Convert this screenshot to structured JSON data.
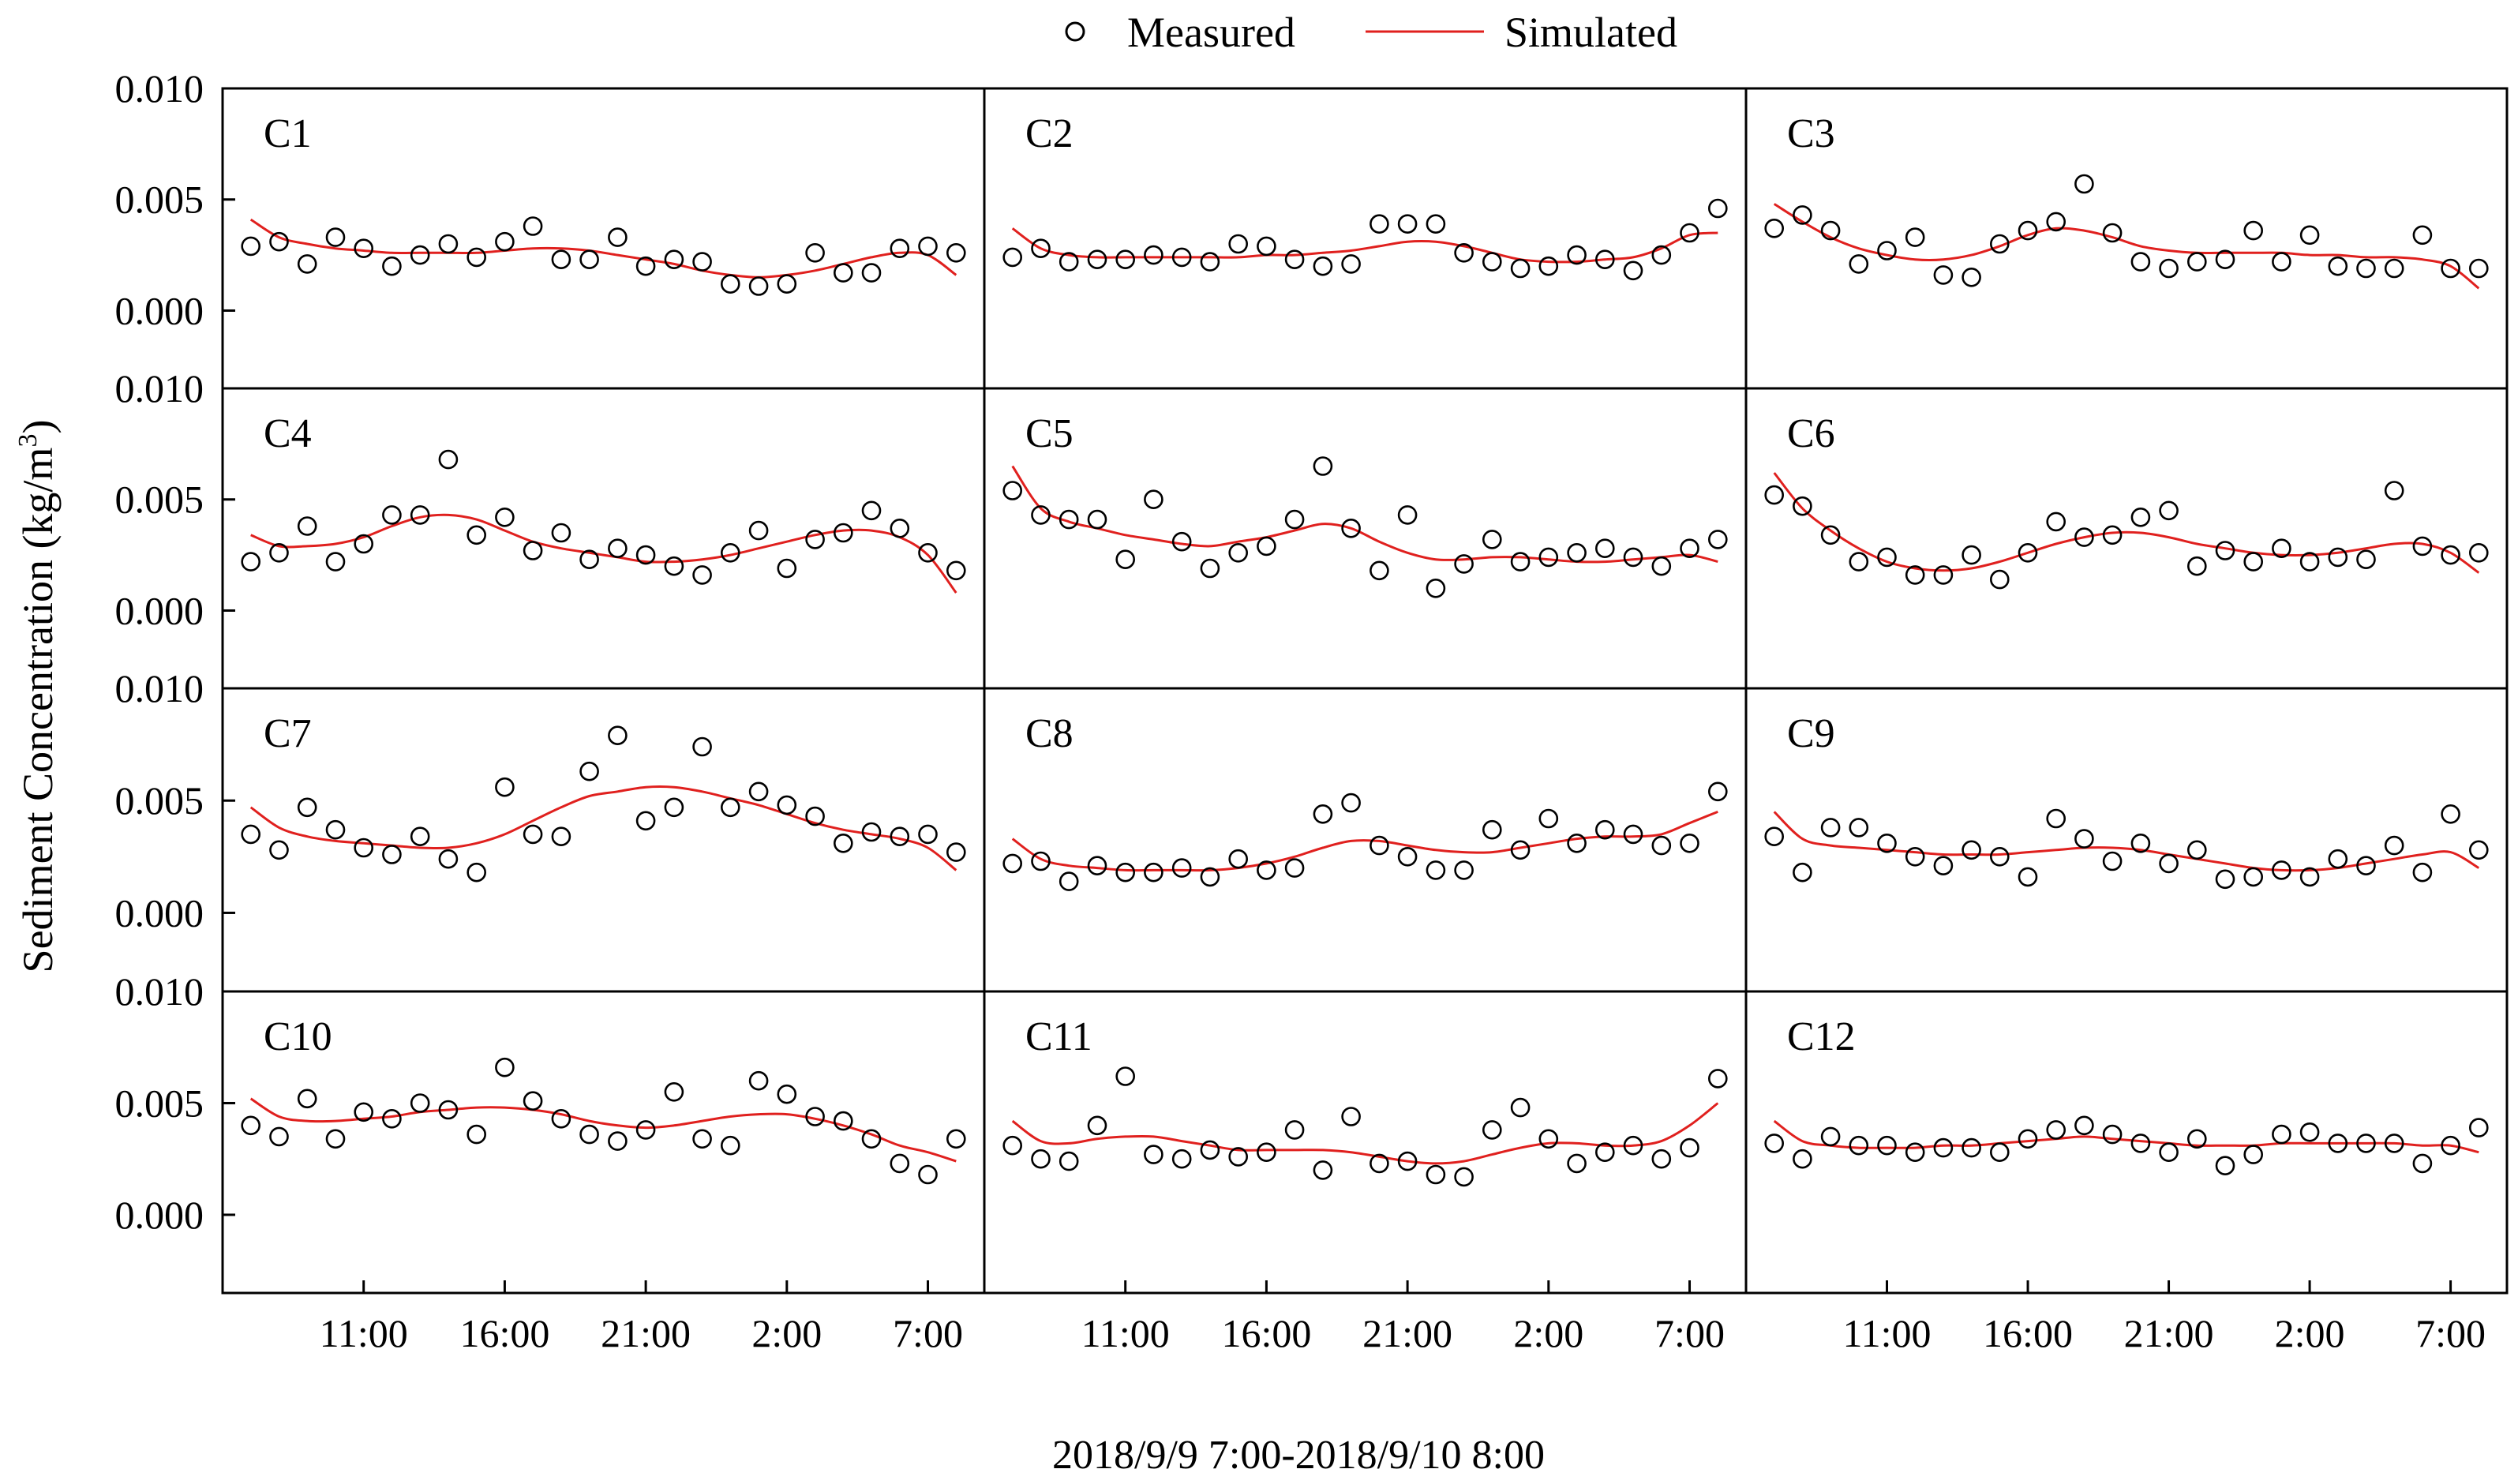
{
  "chart_data": {
    "type": "scatter",
    "layout": "4 rows x 3 columns of panels, shared axes",
    "legend": [
      {
        "name": "Measured",
        "marker": "open-circle",
        "color": "#000000"
      },
      {
        "name": "Simulated",
        "marker": "line",
        "color": "#e0201e"
      }
    ],
    "ylabel": "Sediment Concentration (kg/m",
    "ylabel_superscript": "3",
    "ylabel_suffix": ")",
    "xlabel": "2018/9/9 7:00-2018/9/10 8:00",
    "x_unit": "hours since 2018/9/9 7:00",
    "xlim": [
      -1,
      26
    ],
    "ylim": [
      -0.0035,
      0.01
    ],
    "y_ticks": [
      0.0,
      0.005,
      0.01
    ],
    "y_tick_labels": [
      "0.000",
      "0.005",
      "0.010"
    ],
    "x_ticks": [
      4,
      9,
      14,
      19,
      24
    ],
    "x_tick_labels": [
      "11:00",
      "16:00",
      "21:00",
      "2:00",
      "7:00"
    ],
    "x": [
      0,
      1,
      2,
      3,
      4,
      5,
      6,
      7,
      8,
      9,
      10,
      11,
      12,
      13,
      14,
      15,
      16,
      17,
      18,
      19,
      20,
      21,
      22,
      23,
      24,
      25
    ],
    "panels": [
      {
        "label": "C1",
        "measured": [
          0.0029,
          0.0031,
          0.0021,
          0.0033,
          0.0028,
          0.002,
          0.0025,
          0.003,
          0.0024,
          0.0031,
          0.0038,
          0.0023,
          0.0023,
          0.0033,
          0.002,
          0.0023,
          0.0022,
          0.0012,
          0.0011,
          0.0012,
          0.0026,
          0.0017,
          0.0017,
          0.0028,
          0.0029,
          0.0026
        ],
        "simulated": [
          0.0041,
          0.0033,
          0.003,
          0.0028,
          0.0027,
          0.0026,
          0.0026,
          0.0026,
          0.0026,
          0.0027,
          0.0028,
          0.0028,
          0.0027,
          0.0025,
          0.0023,
          0.0021,
          0.0018,
          0.0016,
          0.0015,
          0.0016,
          0.0018,
          0.0021,
          0.0024,
          0.0026,
          0.0025,
          0.0016
        ]
      },
      {
        "label": "C2",
        "measured": [
          0.0024,
          0.0028,
          0.0022,
          0.0023,
          0.0023,
          0.0025,
          0.0024,
          0.0022,
          0.003,
          0.0029,
          0.0023,
          0.002,
          0.0021,
          0.0039,
          0.0039,
          0.0039,
          0.0026,
          0.0022,
          0.0019,
          0.002,
          0.0025,
          0.0023,
          0.0018,
          0.0025,
          0.0035,
          0.0046
        ],
        "simulated": [
          0.0037,
          0.0028,
          0.0025,
          0.0024,
          0.0024,
          0.0024,
          0.0024,
          0.0024,
          0.0024,
          0.0025,
          0.0025,
          0.0026,
          0.0027,
          0.0029,
          0.0031,
          0.0031,
          0.0029,
          0.0026,
          0.0023,
          0.0022,
          0.0022,
          0.0023,
          0.0024,
          0.0028,
          0.0034,
          0.0035
        ]
      },
      {
        "label": "C3",
        "measured": [
          0.0037,
          0.0043,
          0.0036,
          0.0021,
          0.0027,
          0.0033,
          0.0016,
          0.0015,
          0.003,
          0.0036,
          0.004,
          0.0057,
          0.0035,
          0.0022,
          0.0019,
          0.0022,
          0.0023,
          0.0036,
          0.0022,
          0.0034,
          0.002,
          0.0019,
          0.0019,
          0.0034,
          0.0019,
          0.0019
        ],
        "simulated": [
          0.0048,
          0.004,
          0.0033,
          0.0028,
          0.0025,
          0.0023,
          0.0023,
          0.0025,
          0.0029,
          0.0034,
          0.0037,
          0.0036,
          0.0033,
          0.0029,
          0.0027,
          0.0026,
          0.0026,
          0.0026,
          0.0026,
          0.0025,
          0.0025,
          0.0024,
          0.0024,
          0.0023,
          0.002,
          0.001
        ]
      },
      {
        "label": "C4",
        "measured": [
          0.0022,
          0.0026,
          0.0038,
          0.0022,
          0.003,
          0.0043,
          0.0043,
          0.0068,
          0.0034,
          0.0042,
          0.0027,
          0.0035,
          0.0023,
          0.0028,
          0.0025,
          0.002,
          0.0016,
          0.0026,
          0.0036,
          0.0019,
          0.0032,
          0.0035,
          0.0045,
          0.0037,
          0.0026,
          0.0018
        ],
        "simulated": [
          0.0034,
          0.0029,
          0.0029,
          0.003,
          0.0033,
          0.0038,
          0.0042,
          0.0043,
          0.0041,
          0.0036,
          0.0031,
          0.0028,
          0.0026,
          0.0024,
          0.0022,
          0.0022,
          0.0023,
          0.0025,
          0.0028,
          0.0031,
          0.0034,
          0.0036,
          0.0036,
          0.0033,
          0.0025,
          0.0008
        ]
      },
      {
        "label": "C5",
        "measured": [
          0.0054,
          0.0043,
          0.0041,
          0.0041,
          0.0023,
          0.005,
          0.0031,
          0.0019,
          0.0026,
          0.0029,
          0.0041,
          0.0065,
          0.0037,
          0.0018,
          0.0043,
          0.001,
          0.0021,
          0.0032,
          0.0022,
          0.0024,
          0.0026,
          0.0028,
          0.0024,
          0.002,
          0.0028,
          0.0032
        ],
        "simulated": [
          0.0065,
          0.0046,
          0.004,
          0.0037,
          0.0034,
          0.0032,
          0.003,
          0.0029,
          0.0031,
          0.0033,
          0.0036,
          0.0039,
          0.0037,
          0.0031,
          0.0026,
          0.0023,
          0.0023,
          0.0024,
          0.0024,
          0.0023,
          0.0022,
          0.0022,
          0.0023,
          0.0024,
          0.0025,
          0.0022
        ]
      },
      {
        "label": "C6",
        "measured": [
          0.0052,
          0.0047,
          0.0034,
          0.0022,
          0.0024,
          0.0016,
          0.0016,
          0.0025,
          0.0014,
          0.0026,
          0.004,
          0.0033,
          0.0034,
          0.0042,
          0.0045,
          0.002,
          0.0027,
          0.0022,
          0.0028,
          0.0022,
          0.0024,
          0.0023,
          0.0054,
          0.0029,
          0.0025,
          0.0026
        ],
        "simulated": [
          0.0062,
          0.0046,
          0.0036,
          0.0028,
          0.0022,
          0.0019,
          0.0018,
          0.0019,
          0.0022,
          0.0026,
          0.003,
          0.0033,
          0.0035,
          0.0035,
          0.0033,
          0.003,
          0.0028,
          0.0026,
          0.0025,
          0.0025,
          0.0026,
          0.0028,
          0.003,
          0.003,
          0.0026,
          0.0017
        ]
      },
      {
        "label": "C7",
        "measured": [
          0.0035,
          0.0028,
          0.0047,
          0.0037,
          0.0029,
          0.0026,
          0.0034,
          0.0024,
          0.0018,
          0.0056,
          0.0035,
          0.0034,
          0.0063,
          0.0079,
          0.0041,
          0.0047,
          0.0074,
          0.0047,
          0.0054,
          0.0048,
          0.0043,
          0.0031,
          0.0036,
          0.0034,
          0.0035,
          0.0027
        ],
        "simulated": [
          0.0047,
          0.0038,
          0.0034,
          0.0032,
          0.0031,
          0.003,
          0.0029,
          0.0029,
          0.0031,
          0.0035,
          0.0041,
          0.0047,
          0.0052,
          0.0054,
          0.0056,
          0.0056,
          0.0054,
          0.0051,
          0.0048,
          0.0044,
          0.004,
          0.0037,
          0.0035,
          0.0033,
          0.0029,
          0.0019
        ]
      },
      {
        "label": "C8",
        "measured": [
          0.0022,
          0.0023,
          0.0014,
          0.0021,
          0.0018,
          0.0018,
          0.002,
          0.0016,
          0.0024,
          0.0019,
          0.002,
          0.0044,
          0.0049,
          0.003,
          0.0025,
          0.0019,
          0.0019,
          0.0037,
          0.0028,
          0.0042,
          0.0031,
          0.0037,
          0.0035,
          0.003,
          0.0031,
          0.0054
        ],
        "simulated": [
          0.0033,
          0.0024,
          0.0021,
          0.002,
          0.0019,
          0.0019,
          0.0019,
          0.0019,
          0.002,
          0.0022,
          0.0025,
          0.0029,
          0.0032,
          0.0032,
          0.003,
          0.0028,
          0.0027,
          0.0027,
          0.0029,
          0.0031,
          0.0033,
          0.0034,
          0.0034,
          0.0035,
          0.004,
          0.0045
        ]
      },
      {
        "label": "C9",
        "measured": [
          0.0034,
          0.0018,
          0.0038,
          0.0038,
          0.0031,
          0.0025,
          0.0021,
          0.0028,
          0.0025,
          0.0016,
          0.0042,
          0.0033,
          0.0023,
          0.0031,
          0.0022,
          0.0028,
          0.0015,
          0.0016,
          0.0019,
          0.0016,
          0.0024,
          0.0021,
          0.003,
          0.0018,
          0.0044,
          0.0028
        ],
        "simulated": [
          0.0045,
          0.0033,
          0.003,
          0.0029,
          0.0028,
          0.0027,
          0.0026,
          0.0026,
          0.0026,
          0.0027,
          0.0028,
          0.0029,
          0.0029,
          0.0028,
          0.0026,
          0.0024,
          0.0022,
          0.002,
          0.0019,
          0.0019,
          0.002,
          0.0022,
          0.0024,
          0.0026,
          0.0027,
          0.002
        ]
      },
      {
        "label": "C10",
        "measured": [
          0.004,
          0.0035,
          0.0052,
          0.0034,
          0.0046,
          0.0043,
          0.005,
          0.0047,
          0.0036,
          0.0066,
          0.0051,
          0.0043,
          0.0036,
          0.0033,
          0.0038,
          0.0055,
          0.0034,
          0.0031,
          0.006,
          0.0054,
          0.0044,
          0.0042,
          0.0034,
          0.0023,
          0.0018,
          0.0034
        ],
        "simulated": [
          0.0052,
          0.0044,
          0.0042,
          0.0042,
          0.0043,
          0.0044,
          0.0046,
          0.0047,
          0.0048,
          0.0048,
          0.0047,
          0.0045,
          0.0042,
          0.004,
          0.0039,
          0.004,
          0.0042,
          0.0044,
          0.0045,
          0.0045,
          0.0043,
          0.004,
          0.0036,
          0.0031,
          0.0028,
          0.0024
        ]
      },
      {
        "label": "C11",
        "measured": [
          0.0031,
          0.0025,
          0.0024,
          0.004,
          0.0062,
          0.0027,
          0.0025,
          0.0029,
          0.0026,
          0.0028,
          0.0038,
          0.002,
          0.0044,
          0.0023,
          0.0024,
          0.0018,
          0.0017,
          0.0038,
          0.0048,
          0.0034,
          0.0023,
          0.0028,
          0.0031,
          0.0025,
          0.003,
          0.0061
        ],
        "simulated": [
          0.0042,
          0.0033,
          0.0032,
          0.0034,
          0.0035,
          0.0035,
          0.0033,
          0.0031,
          0.0029,
          0.0029,
          0.0029,
          0.0029,
          0.0028,
          0.0026,
          0.0024,
          0.0023,
          0.0024,
          0.0027,
          0.003,
          0.0032,
          0.0032,
          0.0031,
          0.0031,
          0.0033,
          0.004,
          0.005
        ]
      },
      {
        "label": "C12",
        "measured": [
          0.0032,
          0.0025,
          0.0035,
          0.0031,
          0.0031,
          0.0028,
          0.003,
          0.003,
          0.0028,
          0.0034,
          0.0038,
          0.004,
          0.0036,
          0.0032,
          0.0028,
          0.0034,
          0.0022,
          0.0027,
          0.0036,
          0.0037,
          0.0032,
          0.0032,
          0.0032,
          0.0023,
          0.0031,
          0.0039
        ],
        "simulated": [
          0.0042,
          0.0033,
          0.0031,
          0.003,
          0.003,
          0.003,
          0.0031,
          0.0031,
          0.0032,
          0.0033,
          0.0034,
          0.0035,
          0.0034,
          0.0033,
          0.0032,
          0.0031,
          0.0031,
          0.0031,
          0.0032,
          0.0032,
          0.0032,
          0.0032,
          0.0032,
          0.0031,
          0.0031,
          0.0028
        ]
      }
    ]
  }
}
